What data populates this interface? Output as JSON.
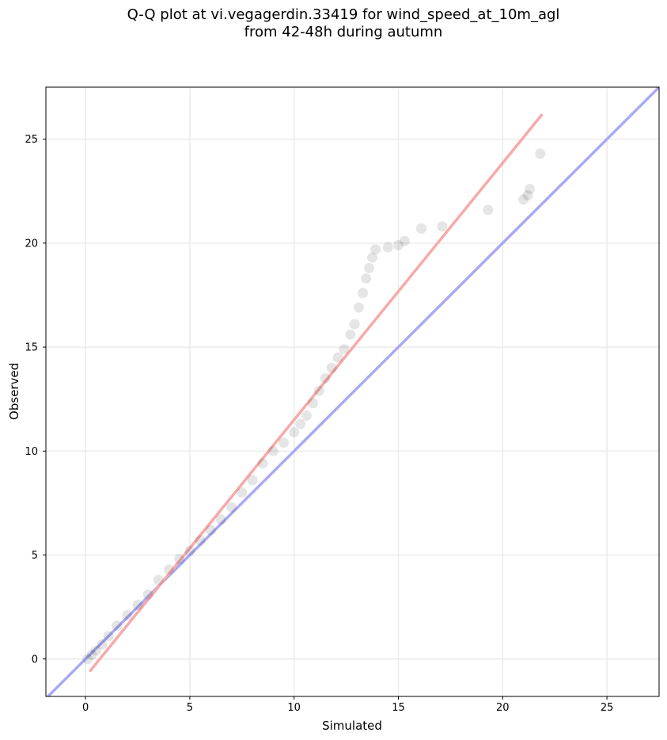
{
  "chart_data": {
    "type": "scatter",
    "title_lines": [
      "Q-Q plot at vi.vegagerdin.33419 for wind_speed_at_10m_agl",
      "from 42-48h during autumn"
    ],
    "xlabel": "Simulated",
    "ylabel": "Observed",
    "xlim": [
      -1.9,
      27.5
    ],
    "ylim": [
      -1.8,
      27.5
    ],
    "xticks": [
      0,
      5,
      10,
      15,
      20,
      25
    ],
    "yticks": [
      0,
      5,
      10,
      15,
      20,
      25
    ],
    "grid": true,
    "colors": {
      "points": "#000000",
      "identity_line": "#a9aaf3",
      "fit_line": "#f6aaaa"
    },
    "identity_line": {
      "x": [
        -1.9,
        27.5
      ],
      "y": [
        -1.9,
        27.5
      ]
    },
    "fit_line": {
      "x": [
        0.2,
        21.9
      ],
      "y": [
        -0.6,
        26.2
      ]
    },
    "points": {
      "x": [
        0.1,
        0.3,
        0.5,
        0.8,
        1.1,
        1.5,
        2.0,
        2.5,
        3.0,
        3.5,
        4.0,
        4.5,
        5.0,
        5.5,
        6.0,
        6.5,
        7.0,
        7.5,
        8.0,
        8.5,
        9.0,
        9.5,
        10.0,
        10.3,
        10.6,
        10.9,
        11.2,
        11.5,
        11.8,
        12.1,
        12.4,
        12.7,
        12.9,
        13.1,
        13.3,
        13.45,
        13.6,
        13.75,
        13.9,
        14.5,
        15.0,
        15.3,
        16.1,
        17.1,
        19.3,
        21.0,
        21.2,
        21.3,
        21.8
      ],
      "y": [
        0.0,
        0.2,
        0.4,
        0.7,
        1.1,
        1.6,
        2.1,
        2.6,
        3.1,
        3.8,
        4.3,
        4.8,
        5.2,
        5.7,
        6.2,
        6.7,
        7.3,
        8.0,
        8.6,
        9.4,
        10.0,
        10.4,
        10.9,
        11.3,
        11.7,
        12.3,
        12.9,
        13.5,
        14.0,
        14.5,
        14.9,
        15.6,
        16.1,
        16.9,
        17.6,
        18.3,
        18.8,
        19.3,
        19.7,
        19.8,
        19.9,
        20.1,
        20.7,
        20.8,
        21.6,
        22.1,
        22.3,
        22.6,
        24.3
      ]
    }
  }
}
